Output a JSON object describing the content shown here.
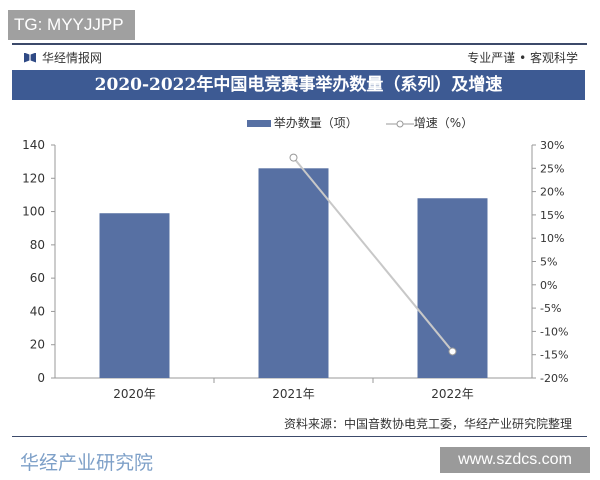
{
  "overlay_tag": "TG: MYYJJPP",
  "header": {
    "brand": "华经情报网",
    "slogan": "专业严谨 • 客观科学"
  },
  "watermark_bottom": "www.szdcs.com",
  "watermark_logo": "华经产业研究院",
  "source": "资料来源：中国音数协电竞工委，华经产业研究院整理",
  "colors": {
    "bar": "#5770a3",
    "line": "#c8c8c8",
    "title_bg": "#3d5a93"
  },
  "chart_data": {
    "type": "bar+line",
    "title": "2020-2022年中国电竞赛事举办数量（系列）及增速",
    "categories": [
      "2020年",
      "2021年",
      "2022年"
    ],
    "series": [
      {
        "name": "举办数量（项）",
        "type": "bar",
        "axis": "left",
        "values": [
          99,
          126,
          108
        ]
      },
      {
        "name": "增速（%）",
        "type": "line",
        "axis": "right",
        "values": [
          null,
          27.3,
          -14.3
        ]
      }
    ],
    "left_axis": {
      "ylim": [
        0,
        140
      ],
      "ticks": [
        "0",
        "20",
        "40",
        "60",
        "80",
        "100",
        "120",
        "140"
      ]
    },
    "right_axis": {
      "ylim": [
        -20,
        30
      ],
      "ticks": [
        "-20%",
        "-15%",
        "-10%",
        "-5%",
        "0%",
        "5%",
        "10%",
        "15%",
        "20%",
        "25%",
        "30%"
      ]
    },
    "grid": false,
    "legend": "top"
  }
}
